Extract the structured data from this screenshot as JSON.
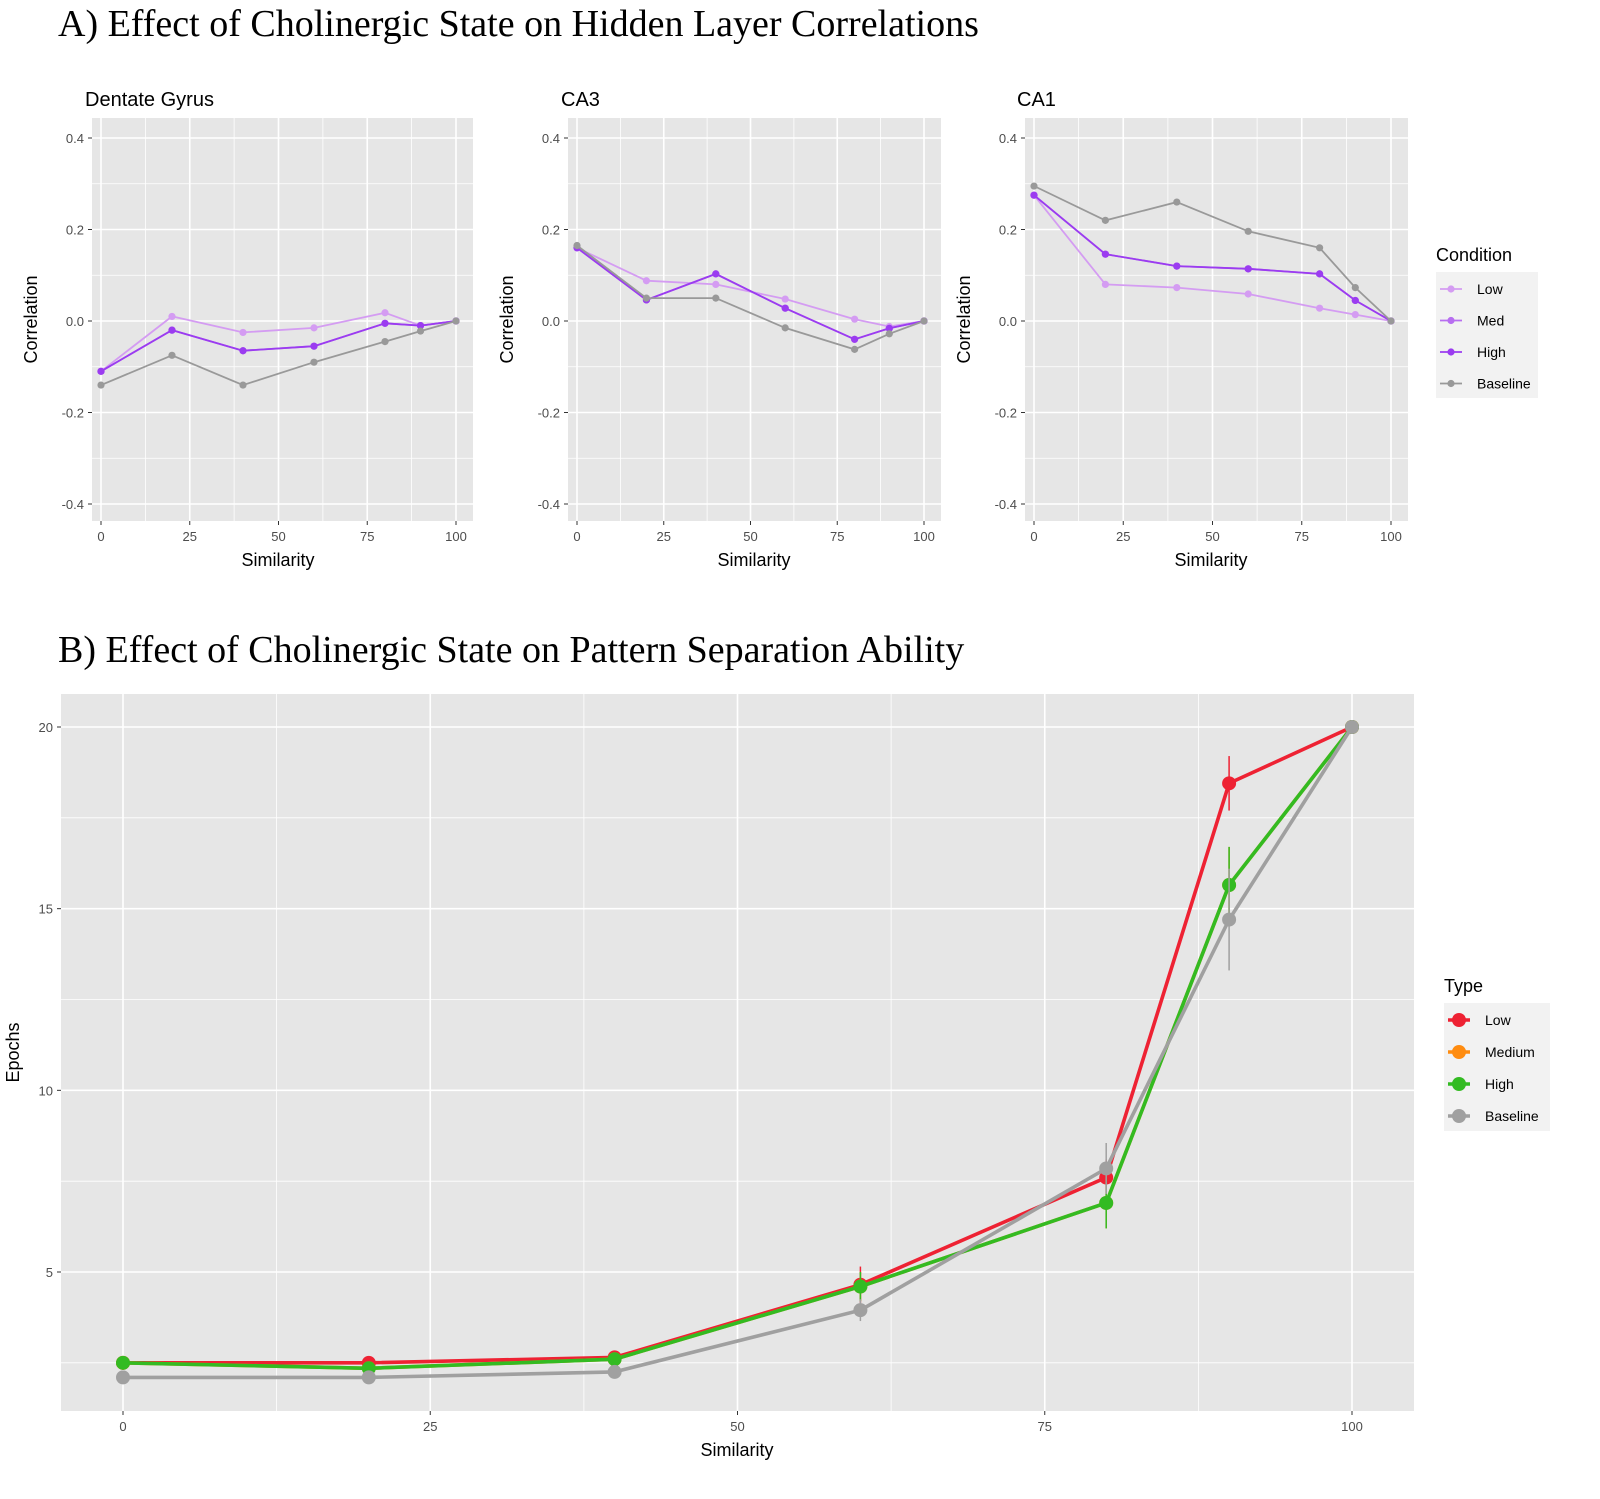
{
  "panel_a": {
    "title": "A) Effect of Cholinergic State on Hidden Layer Correlations"
  },
  "panel_b": {
    "title": "B) Effect of Cholinergic State on Pattern Separation Ability"
  },
  "colors": {
    "panel_bg": "#e6e6e6",
    "grid": "#ffffff",
    "Low": "#d49cf2",
    "Med": "#b76ef0",
    "High": "#9b3cf0",
    "Baseline": "#999999",
    "B_Low": "#ee2233",
    "B_Medium": "#ff8c10",
    "B_High": "#33bb22",
    "B_Baseline": "#a0a0a0"
  },
  "chart_data": [
    {
      "type": "line",
      "title": "Dentate Gyrus",
      "xlabel": "Similarity",
      "ylabel": "Correlation",
      "xlim": [
        0,
        100
      ],
      "ylim": [
        -0.4,
        0.4
      ],
      "xticks": [
        "0",
        "25",
        "50",
        "75",
        "100"
      ],
      "yticks": [
        "-0.4",
        "-0.2",
        "0.0",
        "0.2",
        "0.4"
      ],
      "x": [
        0,
        20,
        40,
        60,
        80,
        90,
        100
      ],
      "series": [
        {
          "name": "Low",
          "values": [
            -0.11,
            0.01,
            -0.025,
            -0.015,
            0.018,
            -0.01,
            0.0
          ]
        },
        {
          "name": "Med",
          "values": [
            -0.11,
            -0.02,
            -0.065,
            -0.055,
            -0.005,
            -0.01,
            0.0
          ]
        },
        {
          "name": "High",
          "values": [
            -0.11,
            -0.02,
            -0.065,
            -0.055,
            -0.005,
            -0.01,
            0.0
          ]
        },
        {
          "name": "Baseline",
          "values": [
            -0.14,
            -0.075,
            -0.14,
            -0.09,
            -0.045,
            -0.022,
            0.0
          ]
        }
      ]
    },
    {
      "type": "line",
      "title": "CA3",
      "xlabel": "Similarity",
      "ylabel": "Correlation",
      "xlim": [
        0,
        100
      ],
      "ylim": [
        -0.4,
        0.4
      ],
      "xticks": [
        "0",
        "25",
        "50",
        "75",
        "100"
      ],
      "yticks": [
        "-0.4",
        "-0.2",
        "0.0",
        "0.2",
        "0.4"
      ],
      "x": [
        0,
        20,
        40,
        60,
        80,
        90,
        100
      ],
      "series": [
        {
          "name": "Low",
          "values": [
            0.16,
            0.088,
            0.08,
            0.048,
            0.004,
            -0.012,
            0.0
          ]
        },
        {
          "name": "Med",
          "values": [
            0.16,
            0.046,
            0.103,
            0.028,
            -0.04,
            -0.016,
            0.0
          ]
        },
        {
          "name": "High",
          "values": [
            0.16,
            0.046,
            0.103,
            0.028,
            -0.04,
            -0.016,
            0.0
          ]
        },
        {
          "name": "Baseline",
          "values": [
            0.165,
            0.05,
            0.05,
            -0.015,
            -0.062,
            -0.028,
            0.0
          ]
        }
      ]
    },
    {
      "type": "line",
      "title": "CA1",
      "xlabel": "Similarity",
      "ylabel": "Correlation",
      "xlim": [
        0,
        100
      ],
      "ylim": [
        -0.4,
        0.4
      ],
      "xticks": [
        "0",
        "25",
        "50",
        "75",
        "100"
      ],
      "yticks": [
        "-0.4",
        "-0.2",
        "0.0",
        "0.2",
        "0.4"
      ],
      "x": [
        0,
        20,
        40,
        60,
        80,
        90,
        100
      ],
      "series": [
        {
          "name": "Low",
          "values": [
            0.275,
            0.08,
            0.073,
            0.059,
            0.028,
            0.014,
            0.0
          ]
        },
        {
          "name": "Med",
          "values": [
            0.275,
            0.146,
            0.12,
            0.114,
            0.103,
            0.045,
            0.0
          ]
        },
        {
          "name": "High",
          "values": [
            0.275,
            0.146,
            0.12,
            0.114,
            0.103,
            0.045,
            0.0
          ]
        },
        {
          "name": "Baseline",
          "values": [
            0.295,
            0.22,
            0.26,
            0.196,
            0.16,
            0.073,
            0.0
          ]
        }
      ],
      "legend": {
        "title": "Condition",
        "position": "right",
        "entries": [
          "Low",
          "Med",
          "High",
          "Baseline"
        ]
      }
    },
    {
      "type": "line",
      "title": "",
      "xlabel": "Similarity",
      "ylabel": "Epochs",
      "xlim": [
        0,
        100
      ],
      "ylim": [
        2,
        21
      ],
      "xticks": [
        "0",
        "25",
        "50",
        "75",
        "100"
      ],
      "yticks": [
        "5",
        "10",
        "15",
        "20"
      ],
      "x": [
        0,
        20,
        40,
        60,
        80,
        90,
        100
      ],
      "series": [
        {
          "name": "Low",
          "values": [
            2.5,
            2.5,
            2.65,
            4.65,
            7.6,
            18.45,
            20
          ],
          "error": [
            0.05,
            0.05,
            0.05,
            0.5,
            0.5,
            0.75,
            0
          ]
        },
        {
          "name": "Medium",
          "values": [
            2.5,
            2.35,
            2.6,
            4.6,
            6.9,
            15.65,
            20
          ],
          "error": [
            0.05,
            0.05,
            0.05,
            0.4,
            0.7,
            1.05,
            0
          ]
        },
        {
          "name": "High",
          "values": [
            2.5,
            2.35,
            2.6,
            4.6,
            6.9,
            15.65,
            20
          ],
          "error": [
            0.05,
            0.05,
            0.05,
            0.4,
            0.7,
            1.05,
            0
          ]
        },
        {
          "name": "Baseline",
          "values": [
            2.1,
            2.1,
            2.25,
            3.95,
            7.85,
            14.7,
            20
          ],
          "error": [
            0.05,
            0.05,
            0.05,
            0.3,
            0.7,
            1.4,
            0
          ]
        }
      ],
      "legend": {
        "title": "Type",
        "position": "right",
        "entries": [
          "Low",
          "Medium",
          "High",
          "Baseline"
        ]
      }
    }
  ]
}
